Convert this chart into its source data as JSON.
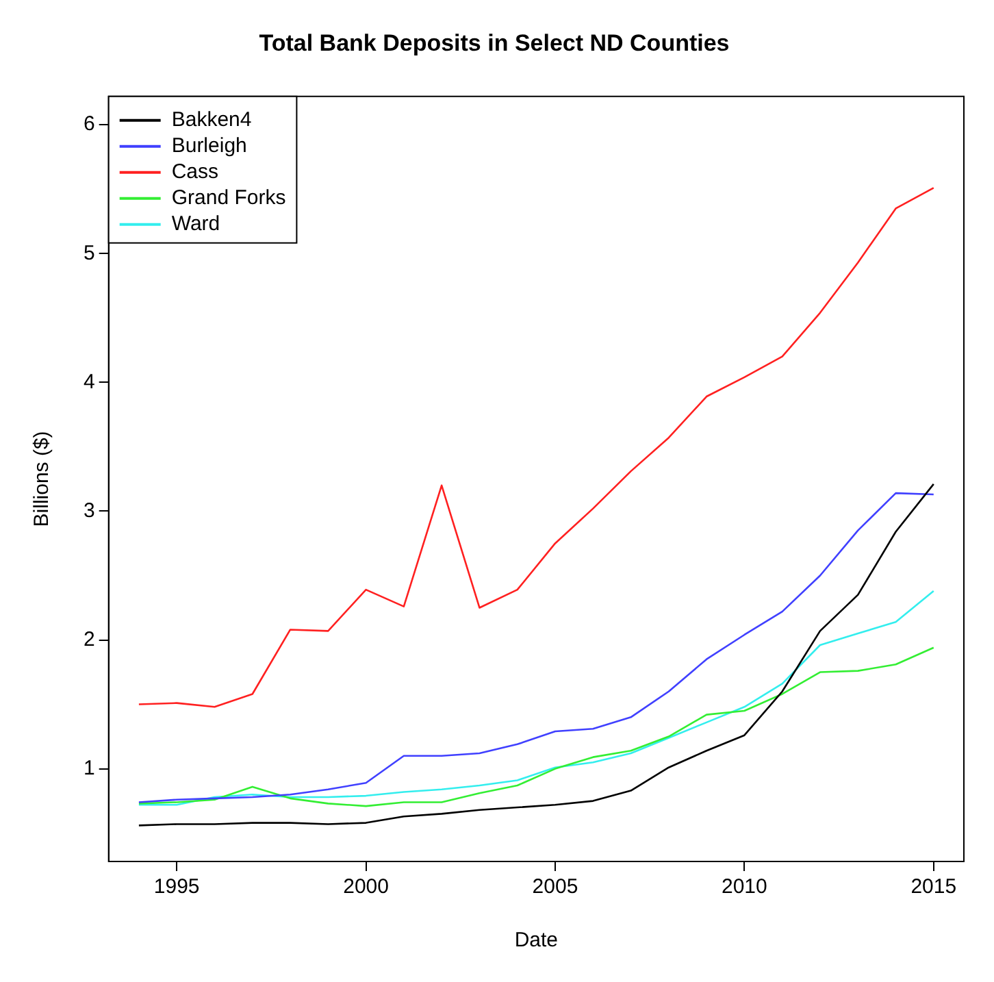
{
  "chart_data": {
    "type": "line",
    "title": "Total Bank Deposits in Select ND Counties",
    "xlabel": "Date",
    "ylabel": "Billions ($)",
    "x": [
      1994,
      1995,
      1996,
      1997,
      1998,
      1999,
      2000,
      2001,
      2002,
      2003,
      2004,
      2005,
      2006,
      2007,
      2008,
      2009,
      2010,
      2011,
      2012,
      2013,
      2014,
      2015
    ],
    "series": [
      {
        "name": "Bakken4",
        "color": "#000000",
        "values": [
          0.56,
          0.57,
          0.57,
          0.58,
          0.58,
          0.57,
          0.58,
          0.63,
          0.65,
          0.68,
          0.7,
          0.72,
          0.75,
          0.83,
          1.01,
          1.14,
          1.26,
          1.6,
          2.07,
          2.35,
          2.84,
          3.21
        ]
      },
      {
        "name": "Burleigh",
        "color": "#4040ff",
        "values": [
          0.74,
          0.76,
          0.77,
          0.78,
          0.8,
          0.84,
          0.89,
          1.1,
          1.1,
          1.12,
          1.19,
          1.29,
          1.31,
          1.4,
          1.6,
          1.85,
          2.04,
          2.22,
          2.5,
          2.85,
          3.14,
          3.13
        ]
      },
      {
        "name": "Cass",
        "color": "#ff2020",
        "values": [
          1.5,
          1.51,
          1.48,
          1.58,
          2.08,
          2.07,
          2.39,
          2.26,
          3.2,
          2.25,
          2.39,
          2.75,
          3.02,
          3.31,
          3.57,
          3.89,
          4.04,
          4.2,
          4.54,
          4.93,
          5.35,
          5.51
        ]
      },
      {
        "name": "Grand Forks",
        "color": "#33ee33",
        "values": [
          0.73,
          0.74,
          0.76,
          0.86,
          0.77,
          0.73,
          0.71,
          0.74,
          0.74,
          0.81,
          0.87,
          1.0,
          1.09,
          1.14,
          1.25,
          1.42,
          1.45,
          1.58,
          1.75,
          1.76,
          1.81,
          1.94
        ]
      },
      {
        "name": "Ward",
        "color": "#33eeee",
        "values": [
          0.72,
          0.72,
          0.78,
          0.8,
          0.78,
          0.78,
          0.79,
          0.82,
          0.84,
          0.87,
          0.91,
          1.01,
          1.05,
          1.12,
          1.24,
          1.36,
          1.48,
          1.66,
          1.96,
          2.05,
          2.14,
          2.38
        ]
      }
    ],
    "xlim": [
      1993.2,
      2015.8
    ],
    "xticks": [
      1995,
      2000,
      2005,
      2010,
      2015
    ],
    "ylim": [
      0.28,
      6.22
    ],
    "yticks": [
      1,
      2,
      3,
      4,
      5,
      6
    ],
    "grid": false,
    "legend": "top left",
    "marker": "none",
    "line_style": "solid"
  }
}
